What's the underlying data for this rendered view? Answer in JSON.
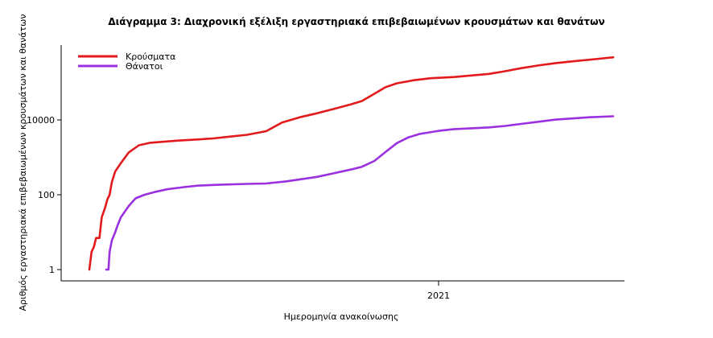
{
  "chart_data": {
    "type": "line",
    "title": "Διάγραμμα 3: Διαχρονική εξέλιξη εργαστηριακά επιβεβαιωμένων κρουσμάτων και θανάτων",
    "xlabel": "Ημερομηνία ανακοίνωσης",
    "ylabel": "Αριθμός εργαστηριακά επιβεβαιωμένων κρουσμάτων και θανάτων",
    "yscale": "log",
    "ylim": [
      0.5,
      1000000
    ],
    "y_ticks": [
      1,
      100,
      10000
    ],
    "y_tick_labels": [
      "1",
      "100",
      "10000"
    ],
    "xlim": [
      "2020-02-01",
      "2021-06-15"
    ],
    "x_ticks": [
      "2021-01-01"
    ],
    "x_tick_labels": [
      "2021"
    ],
    "grid": false,
    "legend_position": "top-left",
    "series": [
      {
        "name": "Κρούσματα",
        "color": "#e31a1c",
        "points": [
          [
            "2020-02-26",
            1
          ],
          [
            "2020-02-28",
            3
          ],
          [
            "2020-03-01",
            4
          ],
          [
            "2020-03-03",
            7
          ],
          [
            "2020-03-06",
            7
          ],
          [
            "2020-03-08",
            25
          ],
          [
            "2020-03-11",
            45
          ],
          [
            "2020-03-13",
            75
          ],
          [
            "2020-03-15",
            100
          ],
          [
            "2020-03-17",
            220
          ],
          [
            "2020-03-20",
            420
          ],
          [
            "2020-03-25",
            700
          ],
          [
            "2020-04-01",
            1350
          ],
          [
            "2020-04-10",
            2100
          ],
          [
            "2020-04-20",
            2450
          ],
          [
            "2020-05-01",
            2600
          ],
          [
            "2020-05-15",
            2800
          ],
          [
            "2020-06-01",
            3000
          ],
          [
            "2020-06-15",
            3200
          ],
          [
            "2020-07-01",
            3600
          ],
          [
            "2020-07-15",
            4000
          ],
          [
            "2020-08-01",
            5000
          ],
          [
            "2020-08-15",
            8500
          ],
          [
            "2020-09-01",
            12000
          ],
          [
            "2020-09-15",
            15000
          ],
          [
            "2020-10-01",
            20000
          ],
          [
            "2020-10-15",
            26000
          ],
          [
            "2020-10-25",
            32000
          ],
          [
            "2020-11-05",
            50000
          ],
          [
            "2020-11-15",
            75000
          ],
          [
            "2020-11-25",
            95000
          ],
          [
            "2020-12-10",
            115000
          ],
          [
            "2020-12-25",
            130000
          ],
          [
            "2021-01-15",
            140000
          ],
          [
            "2021-02-01",
            155000
          ],
          [
            "2021-02-15",
            170000
          ],
          [
            "2021-03-01",
            200000
          ],
          [
            "2021-03-15",
            240000
          ],
          [
            "2021-04-01",
            290000
          ],
          [
            "2021-04-15",
            330000
          ],
          [
            "2021-05-01",
            370000
          ],
          [
            "2021-05-20",
            420000
          ],
          [
            "2021-06-05",
            470000
          ]
        ]
      },
      {
        "name": "Θάνατοι",
        "color": "#9b30e0",
        "points": [
          [
            "2020-03-12",
            1
          ],
          [
            "2020-03-14",
            1
          ],
          [
            "2020-03-15",
            3
          ],
          [
            "2020-03-17",
            6
          ],
          [
            "2020-03-20",
            10
          ],
          [
            "2020-03-22",
            15
          ],
          [
            "2020-03-25",
            25
          ],
          [
            "2020-04-01",
            50
          ],
          [
            "2020-04-07",
            80
          ],
          [
            "2020-04-15",
            100
          ],
          [
            "2020-04-25",
            120
          ],
          [
            "2020-05-05",
            140
          ],
          [
            "2020-05-20",
            160
          ],
          [
            "2020-06-01",
            175
          ],
          [
            "2020-06-20",
            185
          ],
          [
            "2020-07-15",
            195
          ],
          [
            "2020-08-01",
            200
          ],
          [
            "2020-08-20",
            230
          ],
          [
            "2020-09-01",
            260
          ],
          [
            "2020-09-15",
            300
          ],
          [
            "2020-10-01",
            380
          ],
          [
            "2020-10-15",
            470
          ],
          [
            "2020-10-25",
            560
          ],
          [
            "2020-11-05",
            800
          ],
          [
            "2020-11-15",
            1400
          ],
          [
            "2020-11-25",
            2400
          ],
          [
            "2020-12-05",
            3400
          ],
          [
            "2020-12-15",
            4200
          ],
          [
            "2021-01-01",
            5100
          ],
          [
            "2021-01-15",
            5700
          ],
          [
            "2021-02-01",
            6000
          ],
          [
            "2021-02-15",
            6300
          ],
          [
            "2021-03-01",
            6900
          ],
          [
            "2021-03-15",
            7800
          ],
          [
            "2021-04-01",
            9000
          ],
          [
            "2021-04-15",
            10200
          ],
          [
            "2021-05-01",
            11000
          ],
          [
            "2021-05-15",
            11800
          ],
          [
            "2021-06-05",
            12500
          ]
        ]
      }
    ]
  }
}
